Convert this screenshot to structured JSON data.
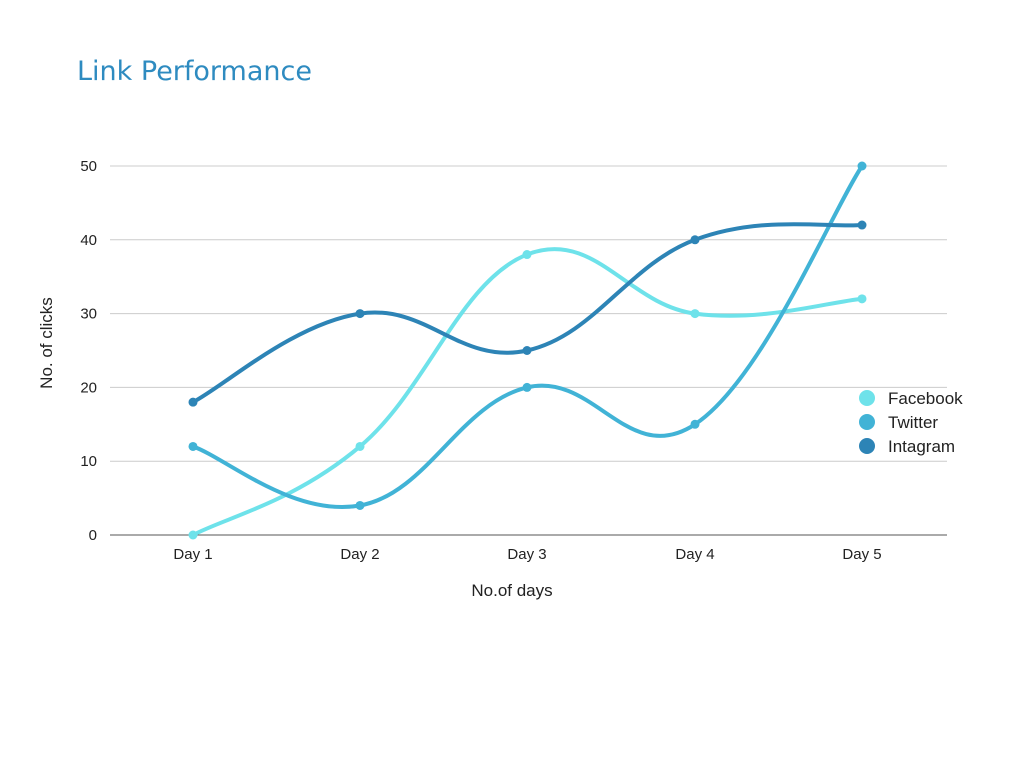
{
  "chart_data": {
    "type": "line",
    "title": "Link Performance",
    "xlabel": "No.of days",
    "ylabel": "No. of clicks",
    "categories": [
      "Day 1",
      "Day 2",
      "Day 3",
      "Day 4",
      "Day 5"
    ],
    "ylim": [
      0,
      50
    ],
    "yticks": [
      0,
      10,
      20,
      30,
      40,
      50
    ],
    "grid": true,
    "legend_position": "right",
    "series": [
      {
        "name": "Facebook",
        "color": "#6ee2ea",
        "values": [
          0,
          12,
          38,
          30,
          32
        ]
      },
      {
        "name": "Twitter",
        "color": "#41b3d6",
        "values": [
          12,
          4,
          20,
          15,
          50
        ]
      },
      {
        "name": "Intagram",
        "color": "#2d84b6",
        "values": [
          18,
          30,
          25,
          40,
          42
        ]
      }
    ]
  }
}
